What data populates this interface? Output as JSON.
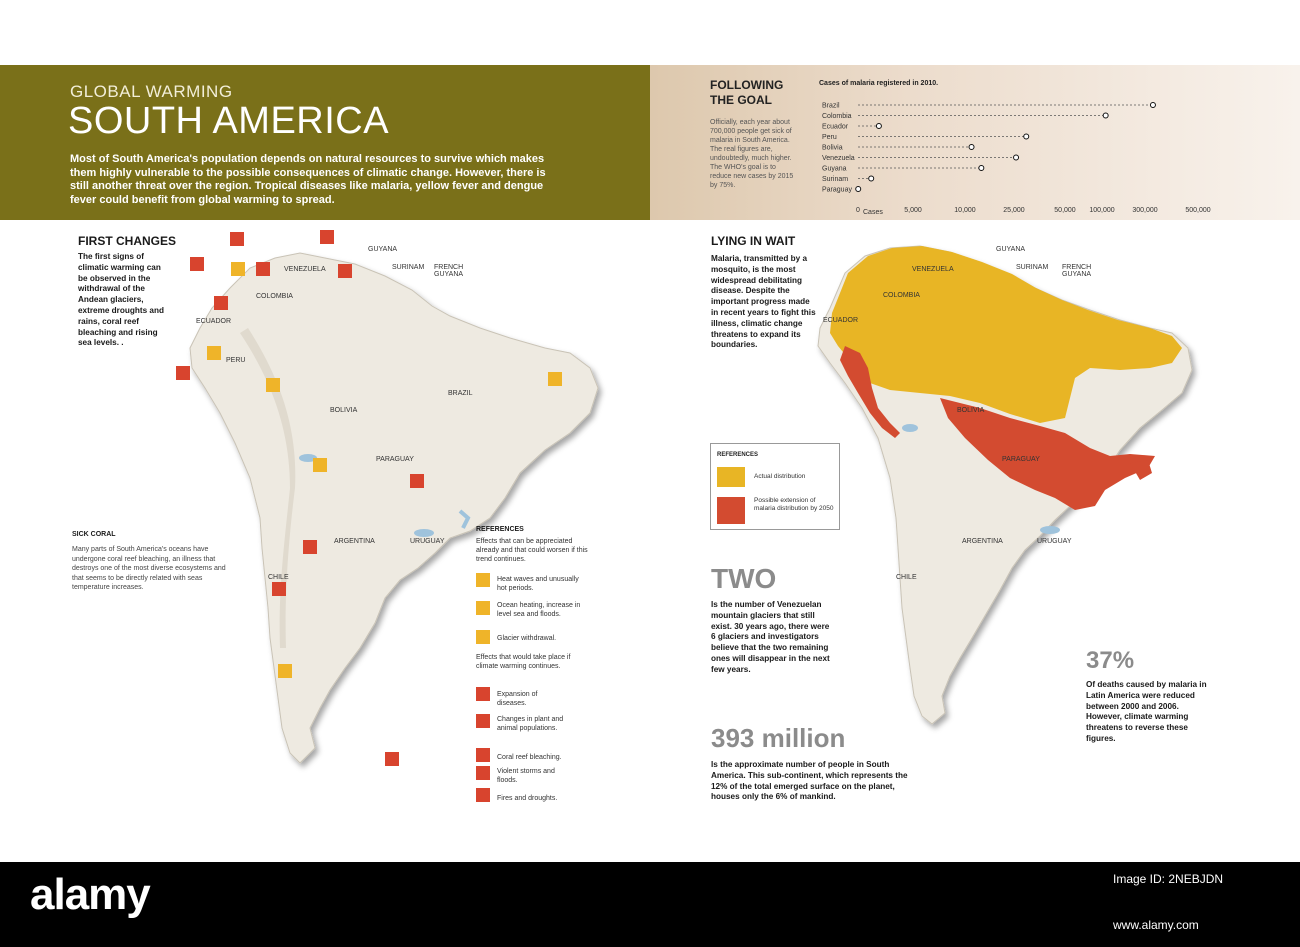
{
  "header": {
    "kicker": "GLOBAL WARMING",
    "title": "SOUTH AMERICA",
    "intro": "Most of South America's population depends on natural resources to survive which makes them highly vulnerable to the possible consequences of climatic change. However, there is still another threat over the region. Tropical diseases like malaria, yellow fever and dengue fever could benefit from global warming to spread."
  },
  "goal": {
    "title": "FOLLOWING THE GOAL",
    "text": "Officially, each year about 700,000 people get sick of malaria in South America. The real figures are, undoubtedly, much higher. The WHO's goal is to reduce new cases by 2015 by 75%."
  },
  "chart_data": {
    "type": "scatter",
    "title": "Cases of malaria registered in 2010.",
    "categories": [
      "Brazil",
      "Colombia",
      "Ecuador",
      "Peru",
      "Bolivia",
      "Venezuela",
      "Guyana",
      "Surinam",
      "Paraguay"
    ],
    "values": [
      330000,
      117000,
      1900,
      31000,
      12000,
      26000,
      15000,
      1200,
      20
    ],
    "xlabel": "Cases",
    "xtick_labels": [
      "0",
      "5,000",
      "10,000",
      "25,000",
      "50,000",
      "100,000",
      "300,000",
      "500,000"
    ],
    "xticks": [
      0,
      5000,
      10000,
      25000,
      50000,
      100000,
      300000,
      500000
    ],
    "xlim": [
      0,
      500000
    ]
  },
  "left": {
    "first_title": "FIRST CHANGES",
    "first_text": "The first signs of climatic warming can be observed in the withdrawal of the Andean glaciers, extreme droughts and rains, coral reef bleaching and rising sea levels.  .",
    "coral_title": "SICK CORAL",
    "coral_text": "Many parts of South America's oceans have undergone coral reef bleaching, an illness that destroys one of the most diverse ecosystems and that seems to be directly related with seas temperature increases.",
    "countries": [
      "GUYANA",
      "SURINAM",
      "FRENCH GUYANA",
      "VENEZUELA",
      "COLOMBIA",
      "ECUADOR",
      "PERU",
      "BRAZIL",
      "BOLIVIA",
      "PARAGUAY",
      "ARGENTINA",
      "URUGUAY",
      "CHILE"
    ],
    "references": {
      "title": "REFERENCES",
      "intro1": "Effects that can be appreciated already and that could worsen if this trend continues.",
      "heat": "Heat waves and unusually hot periods.",
      "ocean": "Ocean heating, increase in level sea and floods.",
      "glacier": "Glacier withdrawal.",
      "intro2": "Effects that would take place if climate warming continues.",
      "disease": "Expansion of diseases.",
      "plants": "Changes in plant and animal populations.",
      "coral": "Coral reef bleaching.",
      "storms": "Violent storms and floods.",
      "fires": "Fires and droughts."
    }
  },
  "right": {
    "title": "LYING IN WAIT",
    "text": "Malaria, transmitted by a mosquito, is the most widespread debilitating disease. Despite the important progress made in recent years to fight this illness, climatic change threatens to expand its boundaries.",
    "ref_title": "REFERENCES",
    "ref_actual": "Actual distribution",
    "ref_possible": "Possible extension of malaria distribution by 2050",
    "colors": {
      "actual": "#e8b525",
      "possible": "#d34b30"
    },
    "two_num": "TWO",
    "two_text": "Is the number of Venezuelan mountain glaciers that still exist. 30 years ago, there were 6 glaciers and investigators believe that the two remaining ones will disappear in the next few years.",
    "pct_num": "37%",
    "pct_text": "Of deaths caused by malaria in Latin America were reduced between 2000 and 2006. However, climate warming threatens to reverse these figures.",
    "pop_num": "393 million",
    "pop_text": "Is the approximate number of people in South America. This sub-continent, which represents the 12% of the total emerged surface on the planet, houses only the 6% of mankind."
  },
  "footer": {
    "brand": "alamy",
    "image_id": "Image ID: 2NEBJDN",
    "url": "www.alamy.com"
  }
}
